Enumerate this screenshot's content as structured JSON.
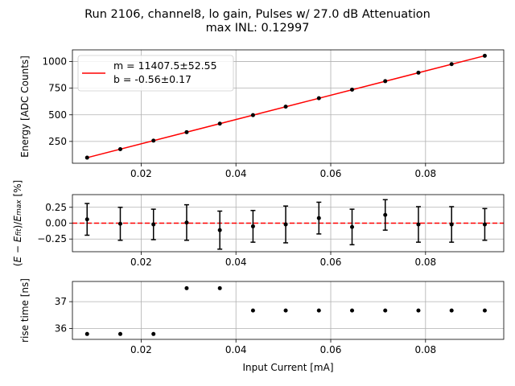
{
  "figure": {
    "title_line1": "Run 2106, channel8, lo gain, Pulses w/ 27.0 dB Attenuation",
    "title_line2": "max INL: 0.12997"
  },
  "chart_data": [
    {
      "type": "line",
      "panel": "energy",
      "ylabel": "Energy [ADC Counts]",
      "xlabel": "",
      "xlim": [
        0.0055,
        0.0965
      ],
      "ylim": [
        45,
        1110
      ],
      "xticks": [
        0.02,
        0.04,
        0.06,
        0.08
      ],
      "xtick_labels": [
        "0.02",
        "0.04",
        "0.06",
        "0.08"
      ],
      "yticks": [
        250,
        500,
        750,
        1000
      ],
      "ytick_labels": [
        "250",
        "500",
        "750",
        "1000"
      ],
      "grid": true,
      "legend": {
        "placement": "top-left",
        "entries": [
          "m = 11407.5±52.55",
          "b = -0.56±0.17"
        ]
      },
      "series": [
        {
          "name": "m = 11407.5±52.55\nb = -0.56±0.17",
          "kind": "fit-line",
          "color": "#ff0000",
          "x": [
            0.0086,
            0.0925
          ],
          "y": [
            97.5,
            1054.6
          ]
        },
        {
          "kind": "points",
          "color": "#000000",
          "x": [
            0.0086,
            0.0156,
            0.0226,
            0.0296,
            0.0366,
            0.0436,
            0.0505,
            0.0575,
            0.0645,
            0.0715,
            0.0785,
            0.0855,
            0.0925
          ],
          "y": [
            97.5,
            177.4,
            257.3,
            337.2,
            417.0,
            496.9,
            576.4,
            656.2,
            736.1,
            816.0,
            895.8,
            975.7,
            1054.6
          ]
        }
      ]
    },
    {
      "type": "scatter",
      "panel": "residuals",
      "ylabel": "(E − E_fit)/E_max [%]",
      "xlabel": "",
      "xlim": [
        0.0055,
        0.0965
      ],
      "ylim": [
        -0.45,
        0.45
      ],
      "xticks": [
        0.02,
        0.04,
        0.06,
        0.08
      ],
      "xtick_labels": [
        "0.02",
        "0.04",
        "0.06",
        "0.08"
      ],
      "yticks": [
        -0.25,
        0.0,
        0.25
      ],
      "ytick_labels": [
        "−0.25",
        "0.00",
        "0.25"
      ],
      "grid": true,
      "reference_line": {
        "y": 0,
        "color": "#ff0000",
        "style": "dashed"
      },
      "series": [
        {
          "kind": "errorbar",
          "color": "#000000",
          "x": [
            0.0086,
            0.0156,
            0.0226,
            0.0296,
            0.0366,
            0.0436,
            0.0505,
            0.0575,
            0.0645,
            0.0715,
            0.0785,
            0.0855,
            0.0925
          ],
          "y": [
            0.06,
            -0.01,
            -0.02,
            0.01,
            -0.11,
            -0.05,
            -0.02,
            0.08,
            -0.06,
            0.13,
            -0.02,
            -0.02,
            -0.02
          ],
          "yerr": [
            0.25,
            0.26,
            0.24,
            0.28,
            0.3,
            0.25,
            0.29,
            0.25,
            0.28,
            0.24,
            0.28,
            0.28,
            0.25
          ]
        }
      ]
    },
    {
      "type": "scatter",
      "panel": "rise-time",
      "ylabel": "rise time [ns]",
      "xlabel": "Input Current [mA]",
      "xlim": [
        0.0055,
        0.0965
      ],
      "ylim": [
        35.6,
        37.75
      ],
      "xticks": [
        0.02,
        0.04,
        0.06,
        0.08
      ],
      "xtick_labels": [
        "0.02",
        "0.04",
        "0.06",
        "0.08"
      ],
      "yticks": [
        36,
        37
      ],
      "ytick_labels": [
        "36",
        "37"
      ],
      "grid": true,
      "series": [
        {
          "kind": "points",
          "color": "#000000",
          "x": [
            0.0086,
            0.0156,
            0.0226,
            0.0296,
            0.0366,
            0.0436,
            0.0505,
            0.0575,
            0.0645,
            0.0715,
            0.0785,
            0.0855,
            0.0925
          ],
          "y": [
            35.8,
            35.8,
            35.8,
            37.5,
            37.5,
            36.67,
            36.67,
            36.67,
            36.67,
            36.67,
            36.67,
            36.67,
            36.67
          ]
        }
      ]
    }
  ]
}
